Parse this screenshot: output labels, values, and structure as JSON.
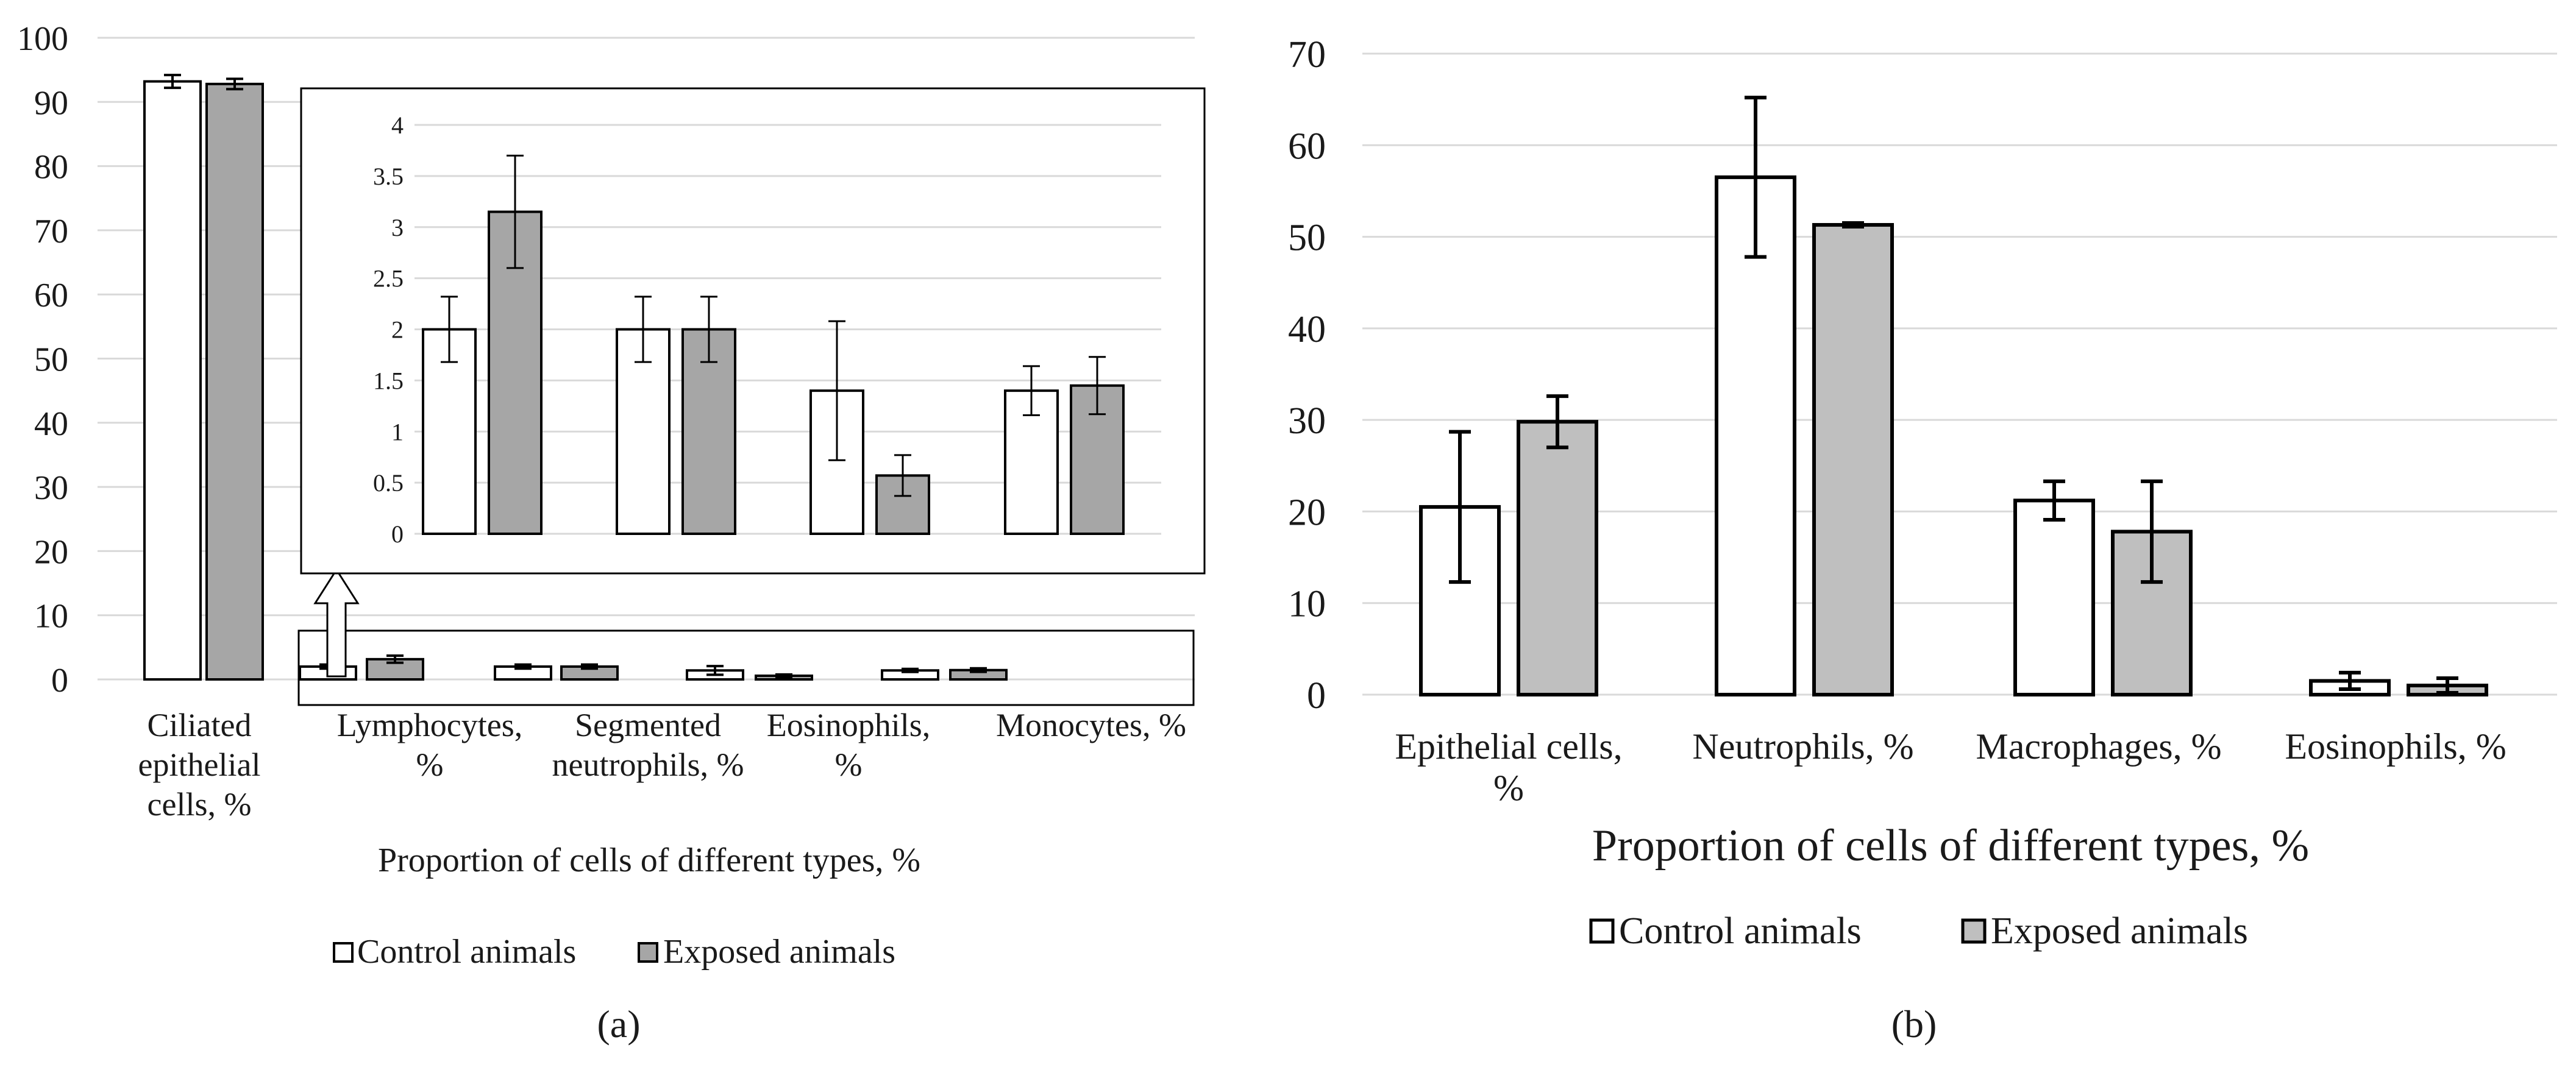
{
  "legend": {
    "control": "Control animals",
    "exposed": "Exposed animals"
  },
  "colors": {
    "control_fill": "#ffffff",
    "exposed_fill_a": "#a6a6a6",
    "exposed_fill_b": "#bfbfbf",
    "bar_edge": "#000000",
    "grid": "#d9d9d9",
    "text": "#1a1a1a"
  },
  "chart_data": [
    {
      "panel": "(a)",
      "type": "bar",
      "title": "",
      "xlabel": "Proportion of cells of different types, %",
      "ylabel": "",
      "ylim": [
        0,
        100
      ],
      "yticks": [
        "0",
        "10",
        "20",
        "30",
        "40",
        "50",
        "60",
        "70",
        "80",
        "90",
        "100"
      ],
      "categories": [
        [
          "Ciliated",
          "epithelial",
          "cells, %"
        ],
        [
          "Lymphocytes,",
          "%"
        ],
        [
          "Segmented",
          "neutrophils, %"
        ],
        [
          "Eosinophils,",
          "%"
        ],
        [
          "Monocytes, %"
        ]
      ],
      "series": [
        {
          "name": "Control animals",
          "values": [
            93.2,
            2.0,
            2.0,
            1.4,
            1.4
          ],
          "errors": [
            1.0,
            0.32,
            0.32,
            0.68,
            0.24
          ]
        },
        {
          "name": "Exposed animals",
          "values": [
            92.8,
            3.15,
            2.0,
            0.57,
            1.45
          ],
          "errors": [
            0.8,
            0.55,
            0.32,
            0.2,
            0.28
          ]
        }
      ],
      "inset": {
        "ylim": [
          0,
          4
        ],
        "yticks": [
          "0",
          "0.5",
          "1",
          "1.5",
          "2",
          "2.5",
          "3",
          "3.5",
          "4"
        ],
        "category_indices": [
          1,
          2,
          3,
          4
        ]
      }
    },
    {
      "panel": "(b)",
      "type": "bar",
      "title": "",
      "xlabel": "Proportion of cells of different types, %",
      "ylabel": "",
      "ylim": [
        0,
        70
      ],
      "yticks": [
        "0",
        "10",
        "20",
        "30",
        "40",
        "50",
        "60",
        "70"
      ],
      "categories": [
        [
          "Epithelial cells,",
          "%"
        ],
        [
          "Neutrophils, %"
        ],
        [
          "Macrophages, %"
        ],
        [
          "Eosinophils, %"
        ]
      ],
      "series": [
        {
          "name": "Control animals",
          "values": [
            20.5,
            56.5,
            21.2,
            1.5
          ],
          "errors": [
            8.2,
            8.7,
            2.1,
            0.9
          ]
        },
        {
          "name": "Exposed animals",
          "values": [
            29.8,
            51.3,
            17.8,
            1.0
          ],
          "errors": [
            2.8,
            0.2,
            5.5,
            0.8
          ]
        }
      ]
    }
  ]
}
